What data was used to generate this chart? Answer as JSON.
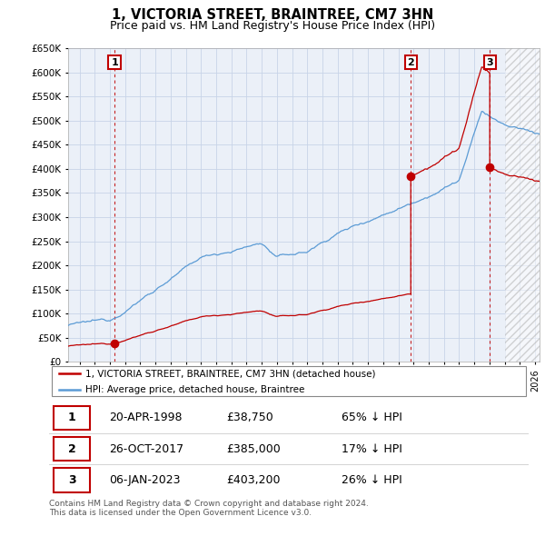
{
  "title": "1, VICTORIA STREET, BRAINTREE, CM7 3HN",
  "subtitle": "Price paid vs. HM Land Registry's House Price Index (HPI)",
  "ylim": [
    0,
    650000
  ],
  "yticks": [
    0,
    50000,
    100000,
    150000,
    200000,
    250000,
    300000,
    350000,
    400000,
    450000,
    500000,
    550000,
    600000,
    650000
  ],
  "ytick_labels": [
    "£0",
    "£50K",
    "£100K",
    "£150K",
    "£200K",
    "£250K",
    "£300K",
    "£350K",
    "£400K",
    "£450K",
    "£500K",
    "£550K",
    "£600K",
    "£650K"
  ],
  "xlim_start": 1995.25,
  "xlim_end": 2026.3,
  "sale_dates": [
    1998.306,
    2017.819,
    2023.019
  ],
  "sale_prices": [
    38750,
    385000,
    403200
  ],
  "sale_labels": [
    "1",
    "2",
    "3"
  ],
  "hpi_color": "#5B9BD5",
  "sale_color": "#C00000",
  "grid_color": "#C8D4E8",
  "background_color": "#EBF0F8",
  "legend_label_sale": "1, VICTORIA STREET, BRAINTREE, CM7 3HN (detached house)",
  "legend_label_hpi": "HPI: Average price, detached house, Braintree",
  "table_data": [
    [
      "1",
      "20-APR-1998",
      "£38,750",
      "65% ↓ HPI"
    ],
    [
      "2",
      "26-OCT-2017",
      "£385,000",
      "17% ↓ HPI"
    ],
    [
      "3",
      "06-JAN-2023",
      "£403,200",
      "26% ↓ HPI"
    ]
  ],
  "footer": "Contains HM Land Registry data © Crown copyright and database right 2024.\nThis data is licensed under the Open Government Licence v3.0.",
  "title_fontsize": 10.5,
  "subtitle_fontsize": 9,
  "hatch_start": 2024.0
}
